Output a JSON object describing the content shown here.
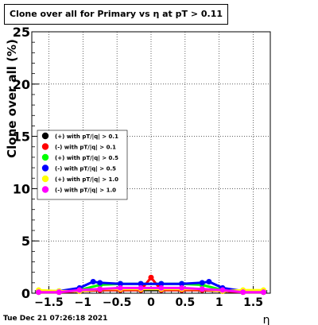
{
  "title": "Clone  over all for Primary vs   η at pT > 0.11",
  "footer": "Tue Dec 21 07:26:18 2021",
  "chart_data": {
    "type": "scatter",
    "xlabel": "η",
    "ylabel": "Clone  over all (%)",
    "xlim": [
      -1.75,
      1.75
    ],
    "ylim": [
      0,
      25
    ],
    "x_ticks": [
      "−1.5",
      "−1",
      "−0.5",
      "0",
      "0.5",
      "1",
      "1.5"
    ],
    "x_tick_values": [
      -1.5,
      -1,
      -0.5,
      0,
      0.5,
      1,
      1.5
    ],
    "y_ticks": [
      "0",
      "5",
      "10",
      "15",
      "20",
      "25"
    ],
    "y_tick_values": [
      0,
      5,
      10,
      15,
      20,
      25
    ],
    "grid": true,
    "legend_placement": "left",
    "series": [
      {
        "name": "(+) with pT/|q| > 0.1",
        "color": "#000000",
        "x": [
          -1.65,
          -1.35,
          -1.05,
          -0.75,
          -0.45,
          -0.15,
          0.15,
          0.45,
          0.75,
          1.05,
          1.35,
          1.65
        ],
        "values": [
          0.1,
          0.1,
          0.2,
          0.3,
          0.3,
          0.3,
          0.3,
          0.3,
          0.3,
          0.2,
          0.1,
          0.1
        ]
      },
      {
        "name": "(-) with pT/|q| > 0.1",
        "color": "#ff0000",
        "x": [
          -1.65,
          -1.35,
          -1.05,
          -0.75,
          -0.45,
          -0.15,
          0,
          0.15,
          0.45,
          0.75,
          1.05,
          1.35,
          1.65
        ],
        "values": [
          0.1,
          0.1,
          0.2,
          0.3,
          0.3,
          0.3,
          1.5,
          0.3,
          0.3,
          0.3,
          0.2,
          0.1,
          0.1
        ]
      },
      {
        "name": "(+) with pT/|q| > 0.5",
        "color": "#00ff00",
        "x": [
          -1.65,
          -1.35,
          -1.05,
          -0.75,
          -0.45,
          -0.15,
          0.15,
          0.45,
          0.75,
          1.05,
          1.35,
          1.65
        ],
        "values": [
          0.2,
          0.2,
          0.3,
          0.8,
          0.9,
          0.9,
          0.9,
          0.9,
          0.8,
          0.3,
          0.2,
          0.2
        ]
      },
      {
        "name": "(-) with pT/|q| > 0.5",
        "color": "#0000ff",
        "x": [
          -1.65,
          -1.35,
          -1.05,
          -0.85,
          -0.75,
          -0.45,
          -0.15,
          0.15,
          0.45,
          0.75,
          0.85,
          1.05,
          1.35,
          1.65
        ],
        "values": [
          0.2,
          0.2,
          0.5,
          1.1,
          1.0,
          0.9,
          0.9,
          0.9,
          0.9,
          1.0,
          1.1,
          0.5,
          0.2,
          0.2
        ]
      },
      {
        "name": "(+) with pT/|q| > 1.0",
        "color": "#ffff00",
        "x": [
          -1.65,
          -1.35,
          -1.05,
          -0.75,
          -0.45,
          -0.15,
          0.15,
          0.45,
          0.75,
          1.05,
          1.35,
          1.65
        ],
        "values": [
          0.3,
          0.2,
          0.2,
          0.4,
          0.4,
          0.4,
          0.4,
          0.4,
          0.4,
          0.2,
          0.3,
          0.3
        ]
      },
      {
        "name": "(-) with pT/|q| > 1.0",
        "color": "#ff00ff",
        "x": [
          -1.65,
          -1.35,
          -1.05,
          -0.75,
          -0.45,
          -0.15,
          0.15,
          0.45,
          0.75,
          1.05,
          1.35,
          1.65
        ],
        "values": [
          0.1,
          0.1,
          0.3,
          0.4,
          0.5,
          0.5,
          0.5,
          0.5,
          0.4,
          0.3,
          0.1,
          0.1
        ]
      }
    ]
  }
}
